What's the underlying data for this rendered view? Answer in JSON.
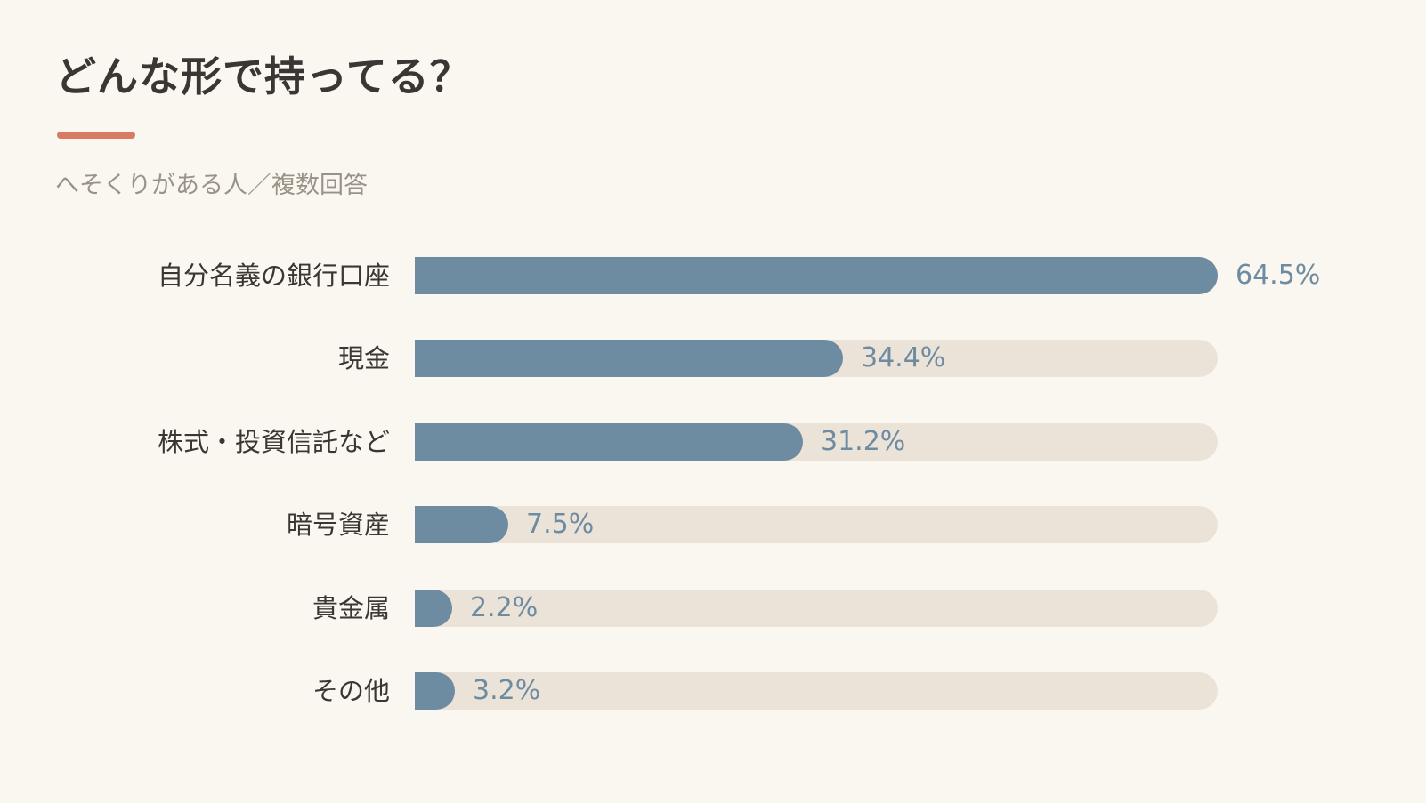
{
  "header": {
    "title": "どんな形で持ってる？",
    "subtitle": "へそくりがある人／複数回答",
    "accent_color": "#d97a62"
  },
  "chart_data": {
    "type": "bar",
    "orientation": "horizontal",
    "categories": [
      "自分名義の銀行口座",
      "現金",
      "株式・投資信託など",
      "暗号資産",
      "貴金属",
      "その他"
    ],
    "values": [
      64.5,
      34.4,
      31.2,
      7.5,
      2.2,
      3.2
    ],
    "value_labels": [
      "64.5%",
      "34.4%",
      "31.2%",
      "7.5%",
      "2.2%",
      "3.2%"
    ],
    "unit": "%",
    "xlim": [
      0,
      64.5
    ],
    "bar_color": "#6e8ca1",
    "track_color": "#ece3d8",
    "grid": false,
    "legend": "none"
  }
}
